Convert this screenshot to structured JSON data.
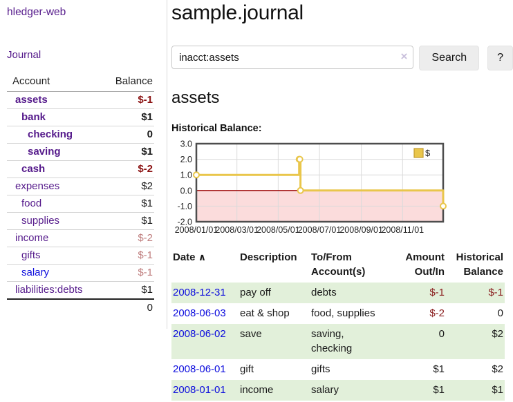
{
  "app": {
    "brand": "hledger-web"
  },
  "sidebar": {
    "nav_journal": "Journal",
    "accounts": {
      "headers": [
        "Account",
        "Balance"
      ],
      "rows": [
        {
          "account": "assets",
          "balance": "$-1",
          "depth": 1,
          "in_selected": true,
          "visited": true
        },
        {
          "account": "bank",
          "balance": "$1",
          "depth": 2,
          "in_selected": true,
          "visited": true
        },
        {
          "account": "checking",
          "balance": "0",
          "depth": 3,
          "in_selected": true,
          "visited": true
        },
        {
          "account": "saving",
          "balance": "$1",
          "depth": 3,
          "in_selected": true,
          "visited": true
        },
        {
          "account": "cash",
          "balance": "$-2",
          "depth": 2,
          "in_selected": true,
          "visited": true
        },
        {
          "account": "expenses",
          "balance": "$2",
          "depth": 1,
          "in_selected": false,
          "visited": true
        },
        {
          "account": "food",
          "balance": "$1",
          "depth": 2,
          "in_selected": false,
          "visited": true
        },
        {
          "account": "supplies",
          "balance": "$1",
          "depth": 2,
          "in_selected": false,
          "visited": true
        },
        {
          "account": "income",
          "balance": "$-2",
          "depth": 1,
          "in_selected": false,
          "visited": true
        },
        {
          "account": "gifts",
          "balance": "$-1",
          "depth": 2,
          "in_selected": false,
          "visited": true
        },
        {
          "account": "salary",
          "balance": "$-1",
          "depth": 2,
          "in_selected": false,
          "visited": false
        },
        {
          "account": "liabilities:debts",
          "balance": "$1",
          "depth": 1,
          "in_selected": false,
          "visited": true
        }
      ],
      "total": "0"
    }
  },
  "main": {
    "title": "sample.journal"
  },
  "search": {
    "value": "inacct:assets",
    "clear_glyph": "×",
    "button_label": "Search",
    "help_label": "?"
  },
  "account_page": {
    "heading": "assets",
    "section_label": "Historical Balance:"
  },
  "chart_data": {
    "type": "line",
    "step": true,
    "title": "Historical Balance",
    "series": [
      {
        "name": "$",
        "color": "#e9c64b",
        "points": [
          [
            "2008-01-01",
            1
          ],
          [
            "2008-06-01",
            2
          ],
          [
            "2008-06-02",
            2
          ],
          [
            "2008-06-03",
            0
          ],
          [
            "2008-12-31",
            -1
          ]
        ]
      }
    ],
    "x_domain": [
      "2008-01-01",
      "2008-12-31"
    ],
    "x_ticks": [
      "2008/01/01",
      "2008/03/01",
      "2008/05/01",
      "2008/07/01",
      "2008/09/01",
      "2008/11/01"
    ],
    "y_ticks": [
      3.0,
      2.0,
      1.0,
      0.0,
      -1.0,
      -2.0
    ],
    "ylim": [
      -2,
      3
    ],
    "grid": true,
    "legend_position": "top-right",
    "legend_label": "$",
    "negative_region_color": "#fbdcdc",
    "zero_line_color": "#990000",
    "grid_color": "#dadada",
    "border_color": "#4d4d4d"
  },
  "register": {
    "headers": [
      "Date",
      "Description",
      "To/From Account(s)",
      "Amount Out/In",
      "Historical Balance"
    ],
    "sort_glyph": "∧",
    "rows": [
      {
        "date": "2008-12-31",
        "description": "pay off",
        "accounts": "debts",
        "amount": "$-1",
        "balance": "$-1"
      },
      {
        "date": "2008-06-03",
        "description": "eat & shop",
        "accounts": "food, supplies",
        "amount": "$-2",
        "balance": "0"
      },
      {
        "date": "2008-06-02",
        "description": "save",
        "accounts": "saving, checking",
        "amount": "0",
        "balance": "$2"
      },
      {
        "date": "2008-06-01",
        "description": "gift",
        "accounts": "gifts",
        "amount": "$1",
        "balance": "$2"
      },
      {
        "date": "2008-01-01",
        "description": "income",
        "accounts": "salary",
        "amount": "$1",
        "balance": "$1"
      }
    ]
  }
}
